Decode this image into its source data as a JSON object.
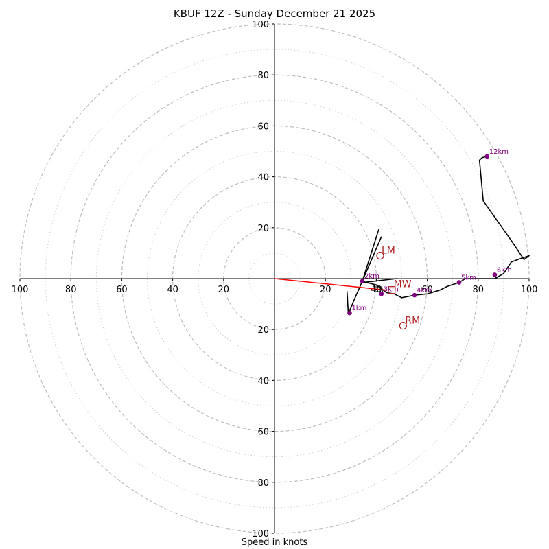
{
  "chart_data": {
    "type": "hodograph",
    "title": "KBUF 12Z - Sunday December 21 2025",
    "xlabel": "Speed in knots",
    "ylabel": "",
    "xlim": [
      -100,
      100
    ],
    "ylim": [
      -100,
      100
    ],
    "ring_major": [
      20,
      40,
      60,
      80,
      100
    ],
    "ring_minor": [
      10,
      30,
      50,
      70,
      90
    ],
    "tick_labels": {
      "x_positive": [
        "20",
        "40",
        "60",
        "80",
        "100"
      ],
      "x_negative": [
        "100",
        "80",
        "60",
        "40",
        "20"
      ],
      "y_positive": [
        "20",
        "40",
        "60",
        "80",
        "100"
      ],
      "y_negative": [
        "20",
        "40",
        "60",
        "80",
        "100"
      ]
    },
    "hodograph_trace": {
      "name": "wind profile",
      "color": "#000000",
      "points": [
        [
          28.5,
          -5.0
        ],
        [
          29.0,
          -14.0
        ],
        [
          31.0,
          -9.0
        ],
        [
          34.5,
          -1.0
        ],
        [
          36.0,
          -1.5
        ],
        [
          38.0,
          -2.0
        ],
        [
          40.0,
          -2.5
        ],
        [
          42.0,
          -4.0
        ],
        [
          44.0,
          -5.5
        ],
        [
          47.0,
          -6.0
        ],
        [
          50.0,
          -7.5
        ],
        [
          55.0,
          -6.5
        ],
        [
          60.0,
          -6.0
        ],
        [
          65.0,
          -4.5
        ],
        [
          68.0,
          -3.0
        ],
        [
          72.5,
          -1.5
        ],
        [
          75.0,
          0.0
        ],
        [
          80.0,
          0.0
        ],
        [
          86.5,
          0.0
        ],
        [
          90.0,
          2.0
        ],
        [
          93.0,
          6.5
        ],
        [
          97.0,
          8.0
        ],
        [
          100.0,
          9.0
        ],
        [
          98.0,
          7.5
        ],
        [
          93.0,
          15.0
        ],
        [
          82.0,
          30.5
        ],
        [
          80.5,
          46.5
        ],
        [
          81.5,
          47.5
        ],
        [
          83.5,
          48.0
        ]
      ]
    },
    "hodograph_spurs": [
      {
        "name": "spur-1",
        "points": [
          [
            34.5,
            -1.0
          ],
          [
            42.0,
            16.5
          ]
        ]
      },
      {
        "name": "spur-2",
        "points": [
          [
            34.5,
            -1.0
          ],
          [
            41.0,
            19.5
          ]
        ]
      },
      {
        "name": "spur-3",
        "points": [
          [
            35.0,
            -1.5
          ],
          [
            48.0,
            0.0
          ]
        ]
      }
    ],
    "height_markers": [
      {
        "label": "1km",
        "u": 29.5,
        "v": -13.5
      },
      {
        "label": "2km",
        "u": 34.5,
        "v": -1.0
      },
      {
        "label": "3km",
        "u": 42.0,
        "v": -6.0
      },
      {
        "label": "4km",
        "u": 55.0,
        "v": -6.5
      },
      {
        "label": "5km",
        "u": 72.5,
        "v": -1.5
      },
      {
        "label": "6km",
        "u": 86.5,
        "v": 1.5
      },
      {
        "label": "12km",
        "u": 83.5,
        "v": 48.0
      }
    ],
    "storm_motion": {
      "shear_vector": {
        "name": "mean-wind-vector",
        "color": "#ff0000",
        "from": [
          0,
          0
        ],
        "to": [
          44.0,
          -4.5
        ]
      },
      "mean_wind": {
        "label": "MW",
        "u": 46.0,
        "v": -4.5
      },
      "left_mover": {
        "label": "LM",
        "u": 41.5,
        "v": 9.0
      },
      "right_mover": {
        "label": "RM",
        "u": 50.5,
        "v": -18.5
      },
      "extra_label": {
        "label": "SR",
        "u": 40.5,
        "v": -5.0
      }
    },
    "colors": {
      "trace": "#000000",
      "markers": "#800080",
      "motion": "#b22222",
      "rings": "#bdbdbd"
    }
  }
}
